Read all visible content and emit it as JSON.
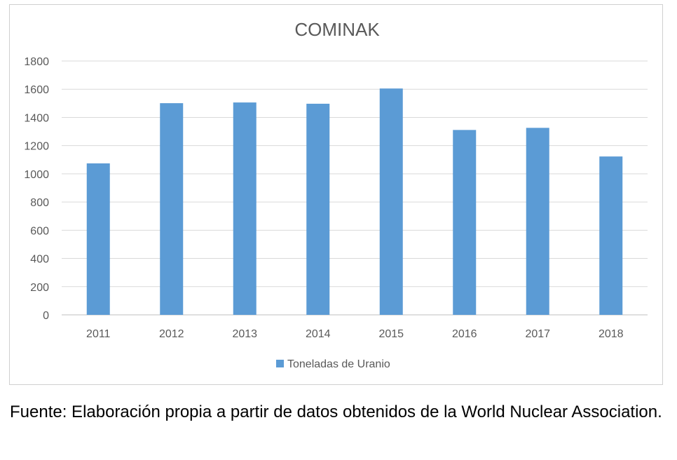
{
  "chart_data": {
    "type": "bar",
    "title": "COMINAK",
    "categories": [
      "2011",
      "2012",
      "2013",
      "2014",
      "2015",
      "2016",
      "2017",
      "2018"
    ],
    "series": [
      {
        "name": "Toneladas de Uranio",
        "values": [
          1074,
          1501,
          1506,
          1497,
          1605,
          1311,
          1326,
          1123
        ]
      }
    ],
    "yticks": [
      "0",
      "200",
      "400",
      "600",
      "800",
      "1000",
      "1200",
      "1400",
      "1600",
      "1800"
    ],
    "ylim": [
      0,
      1800
    ],
    "grid": true,
    "legend_position": "bottom",
    "bar_color": "#5b9bd5"
  },
  "caption": "Fuente: Elaboración propia a partir de datos obtenidos de la World Nuclear Association."
}
